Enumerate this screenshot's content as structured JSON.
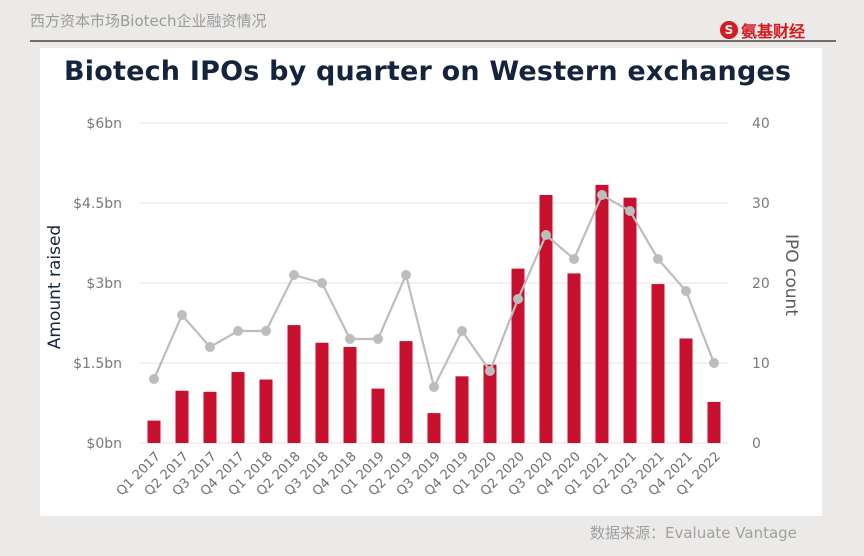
{
  "header": {
    "title": "西方资本市场Biotech企业融资情况",
    "brand": "氨基财经",
    "brand_mark": "S"
  },
  "source": "数据来源：Evaluate Vantage",
  "colors": {
    "bar": "#c8102e",
    "line": "#bdbdbd",
    "grid": "#e3e3e3",
    "title": "#14243c"
  },
  "chart_data": {
    "type": "bar",
    "title": "Biotech IPOs by quarter on Western exchanges",
    "categories": [
      "Q1 2017",
      "Q2 2017",
      "Q3 2017",
      "Q4 2017",
      "Q1 2018",
      "Q2 2018",
      "Q3 2018",
      "Q4 2018",
      "Q1 2019",
      "Q2 2019",
      "Q3 2019",
      "Q4 2019",
      "Q1 2020",
      "Q2 2020",
      "Q3 2020",
      "Q4 2020",
      "Q1 2021",
      "Q2 2021",
      "Q3 2021",
      "Q4 2021",
      "Q1 2022"
    ],
    "y_left": {
      "label": "Amount raised",
      "ticks": [
        "$0bn",
        "$1.5bn",
        "$3bn",
        "$4.5bn",
        "$6bn"
      ],
      "ylim": [
        0,
        6
      ]
    },
    "y_right": {
      "label": "IPO count",
      "ticks": [
        "0",
        "10",
        "20",
        "30",
        "40"
      ],
      "ylim": [
        0,
        40
      ]
    },
    "series": [
      {
        "type": "bar",
        "axis": "left",
        "values": [
          0.42,
          0.98,
          0.96,
          1.33,
          1.19,
          2.21,
          1.88,
          1.8,
          1.02,
          1.91,
          0.56,
          1.25,
          1.47,
          3.27,
          4.65,
          3.18,
          4.84,
          4.6,
          2.98,
          1.96,
          0.77
        ]
      },
      {
        "type": "line",
        "axis": "right",
        "values": [
          8,
          16,
          12,
          14,
          14,
          21,
          20,
          13,
          13,
          21,
          7,
          14,
          9,
          18,
          26,
          23,
          31,
          29,
          23,
          19,
          10
        ]
      }
    ],
    "grid": true,
    "legend": "none"
  }
}
